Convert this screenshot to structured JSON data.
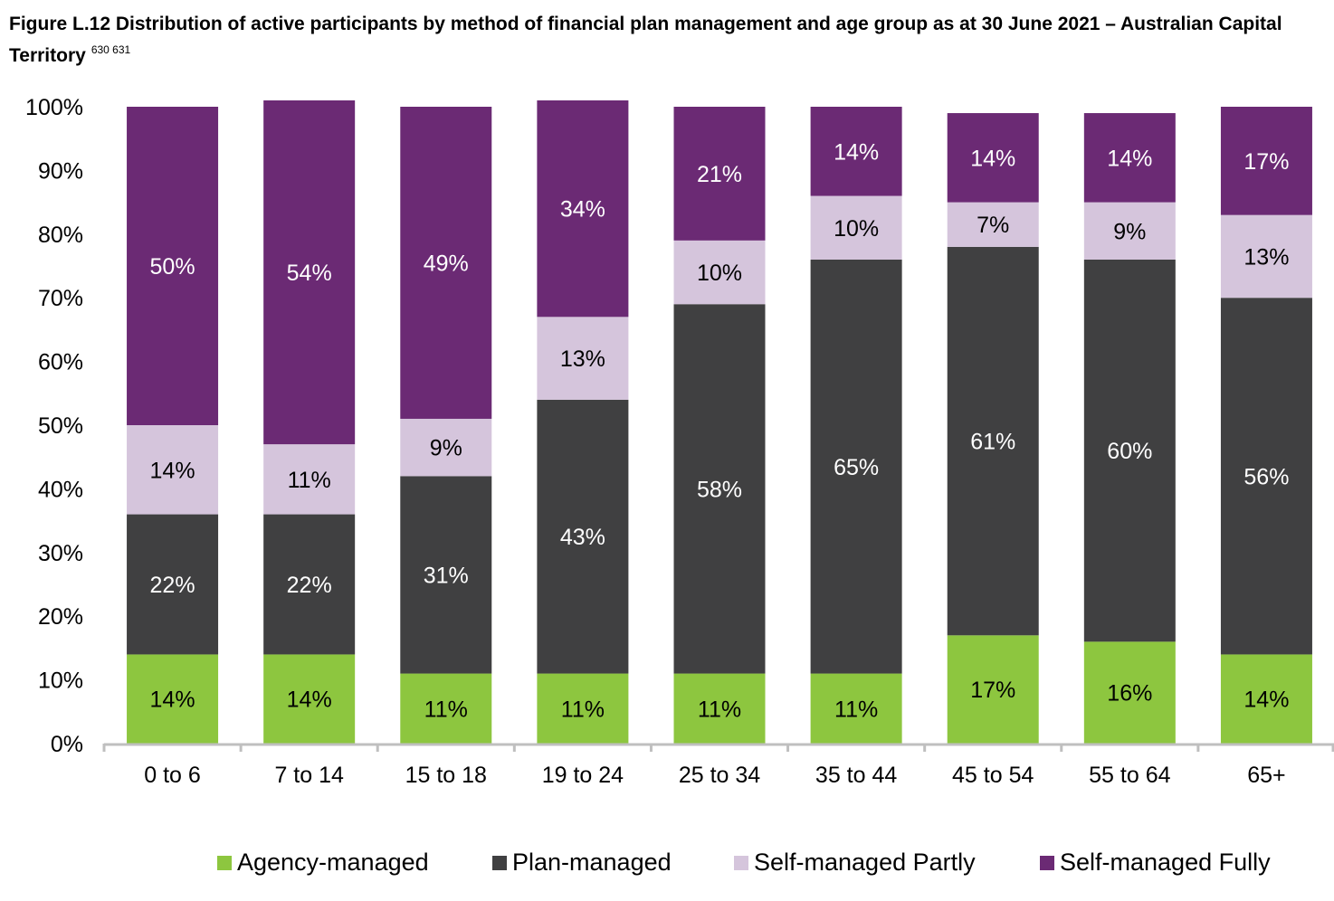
{
  "title": {
    "text": "Figure L.12 Distribution of active participants by method of financial plan management and age group as at 30 June 2021 – Australian Capital Territory",
    "superscripts": "630 631"
  },
  "chart_data": {
    "type": "bar",
    "stacked": true,
    "categories": [
      "0 to 6",
      "7 to 14",
      "15 to 18",
      "19 to 24",
      "25 to 34",
      "35 to 44",
      "45 to 54",
      "55 to 64",
      "65+"
    ],
    "series": [
      {
        "name": "Agency-managed",
        "color": "#8dc63f",
        "label_color": "#000000",
        "values": [
          14,
          14,
          11,
          11,
          11,
          11,
          17,
          16,
          14
        ],
        "labels": [
          "14%",
          "14%",
          "11%",
          "11%",
          "11%",
          "11%",
          "17%",
          "16%",
          "14%"
        ]
      },
      {
        "name": "Plan-managed",
        "color": "#404041",
        "label_color": "#ffffff",
        "values": [
          22,
          22,
          31,
          43,
          58,
          65,
          61,
          60,
          56
        ],
        "labels": [
          "22%",
          "22%",
          "31%",
          "43%",
          "58%",
          "65%",
          "61%",
          "60%",
          "56%"
        ]
      },
      {
        "name": "Self-managed Partly",
        "color": "#d5c5dc",
        "label_color": "#000000",
        "values": [
          14,
          11,
          9,
          13,
          10,
          10,
          7,
          9,
          13
        ],
        "labels": [
          "14%",
          "11%",
          "9%",
          "13%",
          "10%",
          "10%",
          "7%",
          "9%",
          "13%"
        ]
      },
      {
        "name": "Self-managed Fully",
        "color": "#6b2a74",
        "label_color": "#ffffff",
        "values": [
          50,
          54,
          49,
          34,
          21,
          14,
          14,
          14,
          17
        ],
        "labels": [
          "50%",
          "54%",
          "49%",
          "34%",
          "21%",
          "14%",
          "14%",
          "14%",
          "17%"
        ]
      }
    ],
    "y_ticks": [
      "0%",
      "10%",
      "20%",
      "30%",
      "40%",
      "50%",
      "60%",
      "70%",
      "80%",
      "90%",
      "100%"
    ],
    "ylim": [
      0,
      100
    ],
    "grid": false,
    "legend_position": "bottom"
  }
}
